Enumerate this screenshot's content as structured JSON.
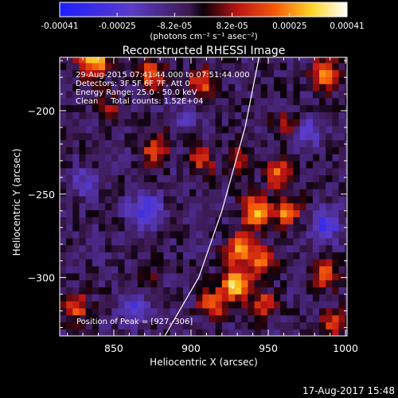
{
  "chart_data": {
    "type": "heatmap",
    "title": "Reconstructed RHESSI Image",
    "xlabel": "Heliocentric X (arcsec)",
    "ylabel": "Heliocentric Y (arcsec)",
    "xlim": [
      815,
      1001
    ],
    "ylim": [
      -335,
      -168
    ],
    "x_ticks": [
      850,
      900,
      950,
      1000
    ],
    "y_ticks": [
      -200,
      -250,
      -300
    ],
    "colorbar": {
      "ticks": [
        "-0.00041",
        "-0.00025",
        "-8.2e-05",
        "8.2e-05",
        "0.00025",
        "0.00041"
      ],
      "range": [
        -0.00041,
        0.00041
      ],
      "units": "(photons cm⁻² s⁻¹ asec⁻²)"
    },
    "annotations": [
      "29-Aug-2015 07:41:44.000 to 07:51:44.000",
      "Detectors: 3F 5F 6F 7F, Att 0",
      "Energy Range: 25.0 - 50.0 keV",
      "Clean     Total counts: 1.52E+04"
    ],
    "peak_label": "Position of Peak = [927,-306]",
    "peak": [
      927,
      -306
    ],
    "limb_curve": [
      [
        944,
        -168
      ],
      [
        935,
        -210
      ],
      [
        920,
        -260
      ],
      [
        905,
        -300
      ],
      [
        883,
        -335
      ]
    ],
    "blobs": [
      {
        "x": 835,
        "y": -172,
        "amp": 0.00035,
        "r": 10
      },
      {
        "x": 872,
        "y": -180,
        "amp": 0.00028,
        "r": 8
      },
      {
        "x": 905,
        "y": -185,
        "amp": 0.00026,
        "r": 8
      },
      {
        "x": 985,
        "y": -180,
        "amp": 0.0003,
        "r": 9
      },
      {
        "x": 846,
        "y": -200,
        "amp": 0.00012,
        "r": 8
      },
      {
        "x": 875,
        "y": -225,
        "amp": 0.00022,
        "r": 9
      },
      {
        "x": 905,
        "y": -232,
        "amp": 0.0002,
        "r": 8
      },
      {
        "x": 930,
        "y": -230,
        "amp": 0.00018,
        "r": 7
      },
      {
        "x": 955,
        "y": -240,
        "amp": 0.00026,
        "r": 8
      },
      {
        "x": 940,
        "y": -262,
        "amp": 0.00036,
        "r": 9
      },
      {
        "x": 960,
        "y": -262,
        "amp": 0.0003,
        "r": 8
      },
      {
        "x": 930,
        "y": -285,
        "amp": 0.00034,
        "r": 9
      },
      {
        "x": 945,
        "y": -292,
        "amp": 0.00026,
        "r": 8
      },
      {
        "x": 927,
        "y": -306,
        "amp": 0.00041,
        "r": 9
      },
      {
        "x": 912,
        "y": -318,
        "amp": 0.00028,
        "r": 8
      },
      {
        "x": 945,
        "y": -318,
        "amp": 0.0002,
        "r": 8
      },
      {
        "x": 985,
        "y": -300,
        "amp": 0.00025,
        "r": 8
      },
      {
        "x": 990,
        "y": -330,
        "amp": 0.0002,
        "r": 8
      },
      {
        "x": 823,
        "y": -320,
        "amp": 0.00024,
        "r": 8
      },
      {
        "x": 870,
        "y": -300,
        "amp": 0.00012,
        "r": 7
      },
      {
        "x": 960,
        "y": -210,
        "amp": 0.00016,
        "r": 7
      },
      {
        "x": 868,
        "y": -262,
        "amp": -0.00025,
        "r": 10
      },
      {
        "x": 860,
        "y": -320,
        "amp": -0.0002,
        "r": 9
      },
      {
        "x": 985,
        "y": -270,
        "amp": -0.00024,
        "r": 9
      },
      {
        "x": 975,
        "y": -215,
        "amp": -0.00018,
        "r": 8
      },
      {
        "x": 830,
        "y": -245,
        "amp": -0.00015,
        "r": 8
      },
      {
        "x": 895,
        "y": -205,
        "amp": -0.00012,
        "r": 7
      }
    ]
  },
  "footer": {
    "date": "17-Aug-2017 15:48"
  }
}
